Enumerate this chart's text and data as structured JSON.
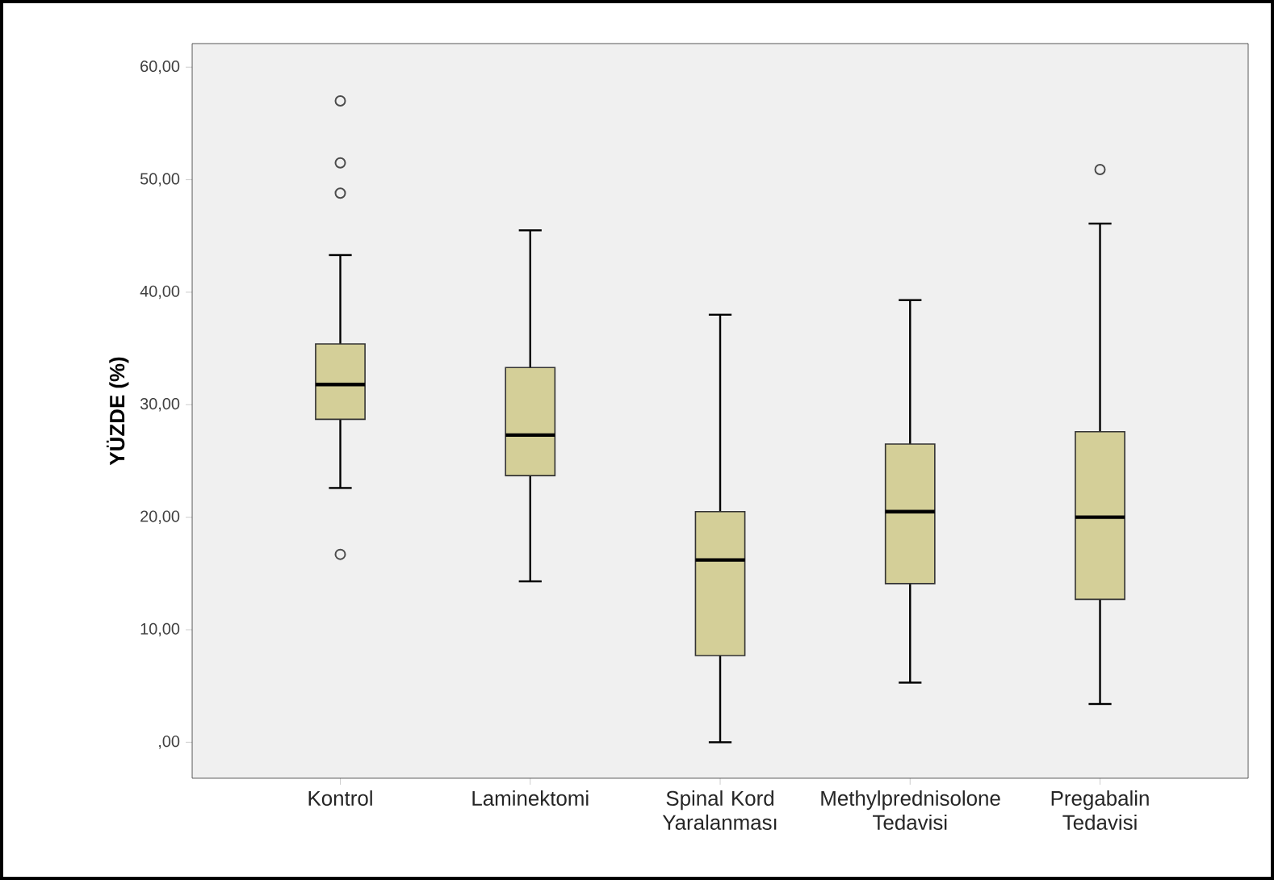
{
  "chart_data": {
    "type": "box",
    "ylabel": "YÜZDE (%)",
    "categories": [
      "Kontrol",
      "Laminektomi",
      "Spinal Kord Yaralanması",
      "Methylprednisolone Tedavisi",
      "Pregabalin Tedavisi"
    ],
    "color": "#d4cf98",
    "boxes": [
      {
        "low": 22.6,
        "q1": 28.7,
        "median": 31.8,
        "q3": 35.4,
        "high": 43.3,
        "outliers": [
          57.0,
          51.5,
          48.8,
          16.7
        ]
      },
      {
        "low": 14.3,
        "q1": 23.7,
        "median": 27.3,
        "q3": 33.3,
        "high": 45.5
      },
      {
        "low": 0.0,
        "q1": 7.7,
        "median": 16.2,
        "q3": 20.5,
        "high": 38.0
      },
      {
        "low": 5.3,
        "q1": 14.1,
        "median": 20.5,
        "q3": 26.5,
        "high": 39.3
      },
      {
        "low": 3.4,
        "q1": 12.7,
        "median": 20.0,
        "q3": 27.6,
        "high": 46.1,
        "outliers": [
          50.9
        ]
      }
    ],
    "ylim": [
      -3.2,
      62.1
    ],
    "yticks": [
      {
        "value": 0,
        "label": ",00"
      },
      {
        "value": 10,
        "label": "10,00"
      },
      {
        "value": 20,
        "label": "20,00"
      },
      {
        "value": 30,
        "label": "30,00"
      },
      {
        "value": 40,
        "label": "40,00"
      },
      {
        "value": 50,
        "label": "50,00"
      },
      {
        "value": 60,
        "label": "60,00"
      }
    ]
  }
}
